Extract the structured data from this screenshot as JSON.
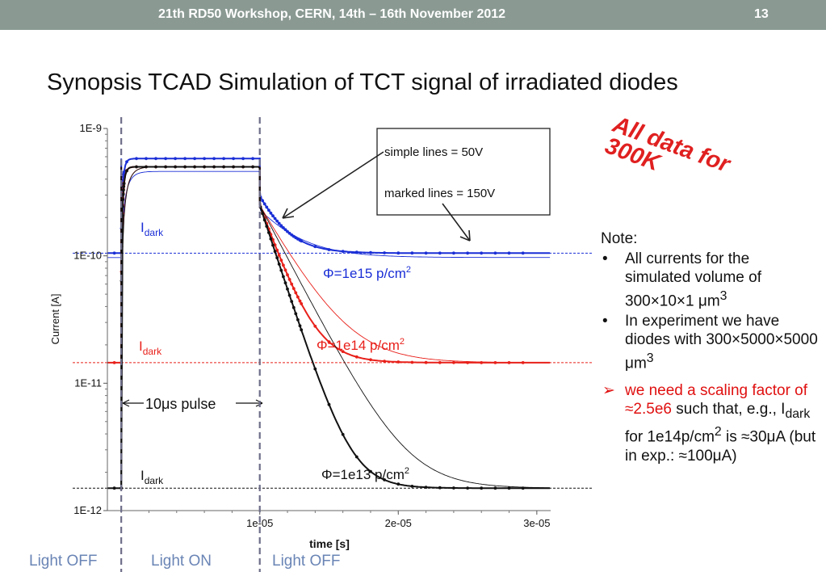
{
  "header": {
    "event": "21th  RD50 Workshop, CERN, 14th – 16th November 2012",
    "page_number": "13"
  },
  "title": "Synopsis TCAD Simulation of TCT signal of irradiated diodes",
  "stamp": {
    "line1": "All data for",
    "line2": "300K"
  },
  "note": {
    "heading": "Note:",
    "items": [
      {
        "bullet": "•",
        "text": "All currents for the simulated volume of 300×10×1 μm",
        "sup": "3"
      },
      {
        "bullet": "•",
        "text": "In experiment we have diodes with 300×5000×5000 μm",
        "sup": "3"
      }
    ],
    "scaling": {
      "bullet": "➢",
      "red_part": "we need a scaling factor of ≈2.5e6",
      "after": " such that, e.g., I",
      "sub": "dark",
      "after2": " for 1e14p/cm",
      "sup": "2",
      "after3": " is ≈30μA (but in exp.: ≈100μA)"
    }
  },
  "light_labels": [
    "Light OFF",
    "Light ON",
    "Light OFF"
  ],
  "colors": {
    "blue": "#1a2ed6",
    "red": "#e8201a",
    "black": "#111111",
    "header": "#8a9a93",
    "dash": "#6e6e8a"
  },
  "chart_data": {
    "type": "line",
    "xlabel": "time [s]",
    "ylabel": "Current [A]",
    "xlim": [
      -1e-06,
      3.1e-05
    ],
    "ylim": [
      1e-12,
      1e-09
    ],
    "yscale": "log",
    "x_ticks": [
      {
        "v": 1e-05,
        "label": "1e-05"
      },
      {
        "v": 2e-05,
        "label": "2e-05"
      },
      {
        "v": 3e-05,
        "label": "3e-05"
      }
    ],
    "y_ticks": [
      {
        "v": 1e-09,
        "label": "1E-9"
      },
      {
        "v": 1e-10,
        "label": "1E-10"
      },
      {
        "v": 1e-11,
        "label": "1E-11"
      },
      {
        "v": 1e-12,
        "label": "1E-12"
      }
    ],
    "pulse_edges": [
      0,
      1e-05
    ],
    "pulse_label": "10μs pulse",
    "legend_box": {
      "line1": "simple lines = 50V",
      "line2": "marked lines = 150V"
    },
    "dark_label": {
      "main": "I",
      "sub": "dark"
    },
    "series": [
      {
        "fluence_label": "Φ=1e15 p/cm",
        "fluence_sup": "2",
        "color": "#1a2ed6",
        "dark": 1.05e-10,
        "on": 5.8e-10,
        "peak": 5.9e-10,
        "simple_dark": 9.7e-11,
        "simple_on": 4.6e-10,
        "tau": 1.5e-06
      },
      {
        "fluence_label": "Φ=1e14 p/cm",
        "fluence_sup": "2",
        "color": "#e8201a",
        "dark": 1.45e-11,
        "on": 5e-10,
        "peak": 5e-10,
        "simple_dark": 1.45e-11,
        "simple_on": 5e-10,
        "tau": 1.4e-06
      },
      {
        "fluence_label": "Φ=1e13 p/cm",
        "fluence_sup": "2",
        "color": "#111111",
        "dark": 1.5e-12,
        "on": 5e-10,
        "peak": 5e-10,
        "simple_dark": 1.5e-12,
        "simple_on": 5e-10,
        "tau": 1.3e-06
      }
    ]
  }
}
